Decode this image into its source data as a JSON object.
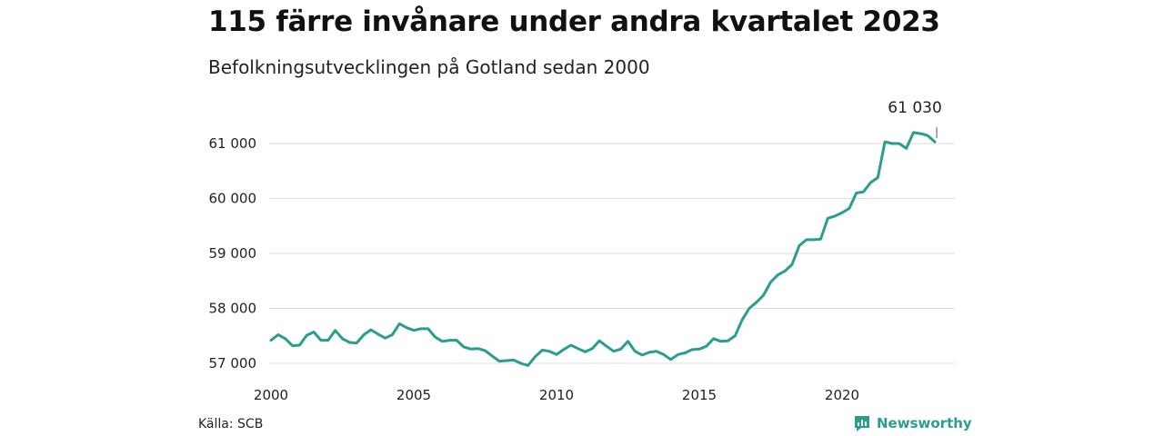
{
  "title": "115 färre invånare under andra kvartalet 2023",
  "subtitle": "Befolkningsutvecklingen på Gotland sedan 2000",
  "source": "Källa: SCB",
  "brand": "Newsworthy",
  "colors": {
    "line": "#2a9d8f",
    "grid": "#dddddd",
    "text": "#222222"
  },
  "chart_data": {
    "type": "line",
    "title": "115 färre invånare under andra kvartalet 2023",
    "subtitle": "Befolkningsutvecklingen på Gotland sedan 2000",
    "xlabel": "",
    "ylabel": "",
    "x_ticks": [
      "2000",
      "2005",
      "2010",
      "2015",
      "2020"
    ],
    "x_tick_values": [
      2000,
      2005,
      2010,
      2015,
      2020
    ],
    "y_ticks": [
      "57 000",
      "58 000",
      "59 000",
      "60 000",
      "61 000"
    ],
    "y_tick_values": [
      57000,
      58000,
      59000,
      60000,
      61000
    ],
    "ylim": [
      57000,
      61300
    ],
    "xlim": [
      2000,
      2023.5
    ],
    "grid": "horizontal",
    "end_label": "61 030",
    "series": [
      {
        "x": [
          2000.0,
          2000.25,
          2000.5,
          2000.75,
          2001.0,
          2001.25,
          2001.5,
          2001.75,
          2002.0,
          2002.25,
          2002.5,
          2002.75,
          2003.0,
          2003.25,
          2003.5,
          2003.75,
          2004.0,
          2004.25,
          2004.5,
          2004.75,
          2005.0,
          2005.25,
          2005.5,
          2005.75,
          2006.0,
          2006.25,
          2006.5,
          2006.75,
          2007.0,
          2007.25,
          2007.5,
          2007.75,
          2008.0,
          2008.25,
          2008.5,
          2008.75,
          2009.0,
          2009.25,
          2009.5,
          2009.75,
          2010.0,
          2010.25,
          2010.5,
          2010.75,
          2011.0,
          2011.25,
          2011.5,
          2011.75,
          2012.0,
          2012.25,
          2012.5,
          2012.75,
          2013.0,
          2013.25,
          2013.5,
          2013.75,
          2014.0,
          2014.25,
          2014.5,
          2014.75,
          2015.0,
          2015.25,
          2015.5,
          2015.75,
          2016.0,
          2016.25,
          2016.5,
          2016.75,
          2017.0,
          2017.25,
          2017.5,
          2017.75,
          2018.0,
          2018.25,
          2018.5,
          2018.75,
          2019.0,
          2019.25,
          2019.5,
          2019.75,
          2020.0,
          2020.25,
          2020.5,
          2020.75,
          2021.0,
          2021.25,
          2021.5,
          2021.75,
          2022.0,
          2022.25,
          2022.5,
          2022.75,
          2023.0,
          2023.25
        ],
        "values": [
          57420,
          57520,
          57450,
          57320,
          57330,
          57510,
          57570,
          57420,
          57420,
          57600,
          57450,
          57380,
          57370,
          57520,
          57610,
          57530,
          57460,
          57520,
          57720,
          57650,
          57600,
          57630,
          57630,
          57480,
          57400,
          57420,
          57420,
          57300,
          57260,
          57270,
          57230,
          57130,
          57040,
          57050,
          57060,
          57000,
          56960,
          57120,
          57240,
          57220,
          57160,
          57250,
          57330,
          57270,
          57210,
          57270,
          57410,
          57310,
          57220,
          57260,
          57400,
          57220,
          57150,
          57200,
          57220,
          57160,
          57070,
          57160,
          57190,
          57250,
          57260,
          57310,
          57450,
          57400,
          57410,
          57500,
          57790,
          58000,
          58110,
          58240,
          58480,
          58610,
          58680,
          58800,
          59140,
          59250,
          59250,
          59260,
          59640,
          59680,
          59740,
          59820,
          60100,
          60120,
          60290,
          60380,
          61030,
          61000,
          61000,
          60910,
          61200,
          61180,
          61145,
          61030
        ]
      }
    ]
  }
}
